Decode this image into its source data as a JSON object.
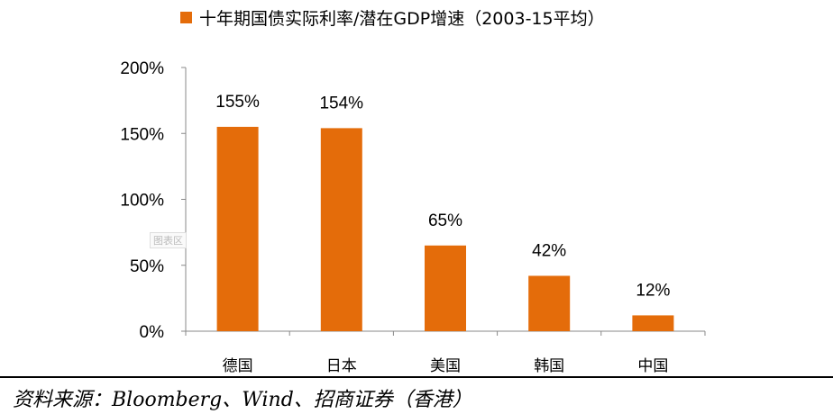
{
  "chart_data": {
    "type": "bar",
    "title": "",
    "legend": [
      "十年期国债实际利率/潜在GDP增速（2003-15平均）"
    ],
    "legend_placement": "top",
    "categories": [
      "德国",
      "日本",
      "美国",
      "韩国",
      "中国"
    ],
    "values": [
      155,
      154,
      65,
      42,
      12
    ],
    "data_labels": [
      "155%",
      "154%",
      "65%",
      "42%",
      "12%"
    ],
    "yticks": [
      "0%",
      "50%",
      "100%",
      "150%",
      "200%"
    ],
    "ylim": [
      0,
      200
    ],
    "xlabel": "",
    "ylabel": "",
    "color": "#E46C0A"
  },
  "watermark": "图表区",
  "source": "资料来源：Bloomberg、Wind、招商证券（香港）"
}
